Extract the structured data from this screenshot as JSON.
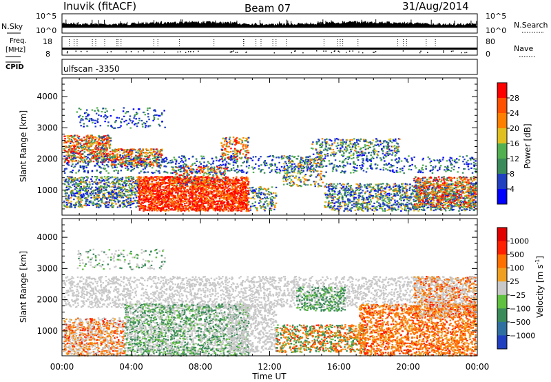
{
  "header": {
    "site": "Inuvik (fitACF)",
    "beam": "Beam 07",
    "date": "31/Aug/2014"
  },
  "sky_panel": {
    "left_label": "N.Sky",
    "right_label": "N.Search",
    "ticks": [
      "10^5",
      "10^0"
    ]
  },
  "freq_panel": {
    "left_label_1": "Freq.",
    "left_label_2": "[MHz]",
    "left_ticks": [
      "18",
      "8"
    ],
    "right_label": "Nave",
    "right_ticks": [
      "80",
      "0"
    ]
  },
  "cpid_panel": {
    "label": "CPID",
    "text": "ulfscan -3350"
  },
  "chart_data": [
    {
      "type": "heatmap",
      "ylabel": "Slant Range [km]",
      "xlabel": "Time UT",
      "x_ticks": [
        "00:00",
        "04:00",
        "08:00",
        "12:00",
        "16:00",
        "20:00",
        "00:00"
      ],
      "y_ticks": [
        1000,
        2000,
        3000,
        4000
      ],
      "ylim": [
        200,
        4600
      ],
      "colorbar": {
        "label": "Power [dB]",
        "ticks": [
          "4",
          "8",
          "12",
          "16",
          "20",
          "24",
          "28"
        ],
        "colors": [
          "#0000ff",
          "#2040c0",
          "#3a8a5a",
          "#52b050",
          "#e0c020",
          "#ff8000",
          "#ff5000",
          "#ff0000"
        ]
      }
    },
    {
      "type": "heatmap",
      "ylabel": "Slant Range [km]",
      "xlabel": "Time UT",
      "x_ticks": [
        "00:00",
        "04:00",
        "08:00",
        "12:00",
        "16:00",
        "20:00",
        "00:00"
      ],
      "y_ticks": [
        1000,
        2000,
        3000,
        4000
      ],
      "ylim": [
        200,
        4600
      ],
      "colorbar": {
        "label": "Velocity [m s",
        "label_sup": "-1",
        "label_end": "]",
        "ticks": [
          "1000",
          "500",
          "100",
          "25",
          "−25",
          "−100",
          "−500",
          "−1000"
        ],
        "colors": [
          "#2040c0",
          "#3070a0",
          "#3a8a5a",
          "#60c040",
          "#c8c8c8",
          "#f0a020",
          "#ff7000",
          "#ff2000",
          "#e00000"
        ]
      }
    }
  ]
}
